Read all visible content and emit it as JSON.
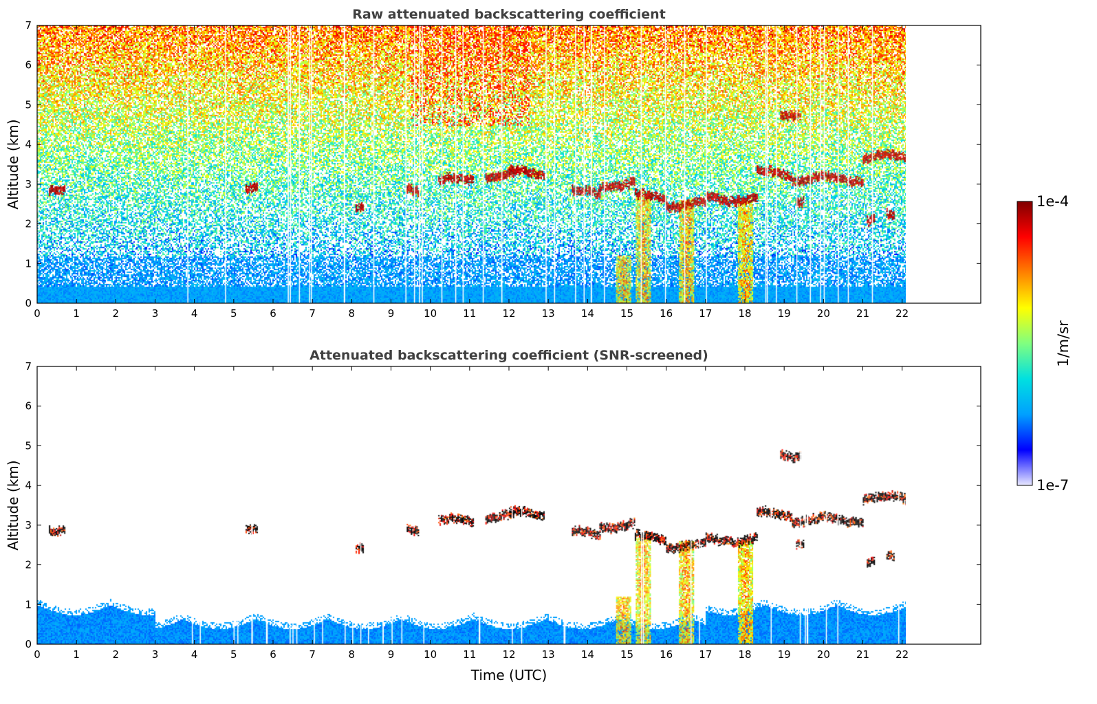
{
  "chart_data": [
    {
      "type": "heatmap",
      "title": "Raw attenuated backscattering coefficient",
      "ylabel": "Altitude (km)",
      "xlabel": "",
      "xlim": [
        0,
        24
      ],
      "ylim": [
        0,
        7
      ],
      "xticks": [
        "0",
        "1",
        "2",
        "3",
        "4",
        "5",
        "6",
        "7",
        "8",
        "9",
        "10",
        "11",
        "12",
        "13",
        "14",
        "15",
        "16",
        "17",
        "18",
        "19",
        "20",
        "21",
        "22"
      ],
      "yticks": [
        "0",
        "1",
        "2",
        "3",
        "4",
        "5",
        "6",
        "7"
      ],
      "data_end_time": 22.1,
      "screened": false,
      "features": {
        "boundary_layer_top_km": 0.45,
        "cloud_layers": [
          {
            "t0": 0.3,
            "t1": 0.7,
            "alt": 2.93
          },
          {
            "t0": 5.3,
            "t1": 5.6,
            "alt": 2.93
          },
          {
            "t0": 8.1,
            "t1": 8.3,
            "alt": 2.5
          },
          {
            "t0": 9.4,
            "t1": 9.7,
            "alt": 2.9
          },
          {
            "t0": 10.2,
            "t1": 11.1,
            "alt": 3.12
          },
          {
            "t0": 11.4,
            "t1": 12.1,
            "alt": 3.25
          },
          {
            "t0": 12.0,
            "t1": 12.9,
            "alt": 3.3
          },
          {
            "t0": 13.6,
            "t1": 14.3,
            "alt": 2.8
          },
          {
            "t0": 14.3,
            "t1": 15.2,
            "alt": 3.0
          },
          {
            "t0": 15.2,
            "t1": 16.0,
            "alt": 2.7
          },
          {
            "t0": 16.0,
            "t1": 17.0,
            "alt": 2.5
          },
          {
            "t0": 17.0,
            "t1": 18.3,
            "alt": 2.65
          },
          {
            "t0": 18.3,
            "t1": 19.2,
            "alt": 3.3
          },
          {
            "t0": 19.2,
            "t1": 21.0,
            "alt": 3.15
          },
          {
            "t0": 21.0,
            "t1": 22.1,
            "alt": 3.7
          },
          {
            "t0": 18.9,
            "t1": 19.4,
            "alt": 4.8
          },
          {
            "t0": 19.3,
            "t1": 19.5,
            "alt": 2.6
          },
          {
            "t0": 21.1,
            "t1": 21.3,
            "alt": 2.1
          },
          {
            "t0": 21.6,
            "t1": 21.8,
            "alt": 2.2
          }
        ],
        "precipitation_shafts": [
          {
            "t": 15.4,
            "top_km": 2.7
          },
          {
            "t": 16.5,
            "top_km": 2.6
          },
          {
            "t": 18.0,
            "top_km": 2.6
          },
          {
            "t": 14.9,
            "top_km": 1.2
          }
        ]
      }
    },
    {
      "type": "heatmap",
      "title": "Attenuated backscattering coefficient (SNR-screened)",
      "ylabel": "Altitude (km)",
      "xlabel": "Time (UTC)",
      "xlim": [
        0,
        24
      ],
      "ylim": [
        0,
        7
      ],
      "xticks": [
        "0",
        "1",
        "2",
        "3",
        "4",
        "5",
        "6",
        "7",
        "8",
        "9",
        "10",
        "11",
        "12",
        "13",
        "14",
        "15",
        "16",
        "17",
        "18",
        "19",
        "20",
        "21",
        "22"
      ],
      "yticks": [
        "0",
        "1",
        "2",
        "3",
        "4",
        "5",
        "6",
        "7"
      ],
      "data_end_time": 22.1,
      "screened": true,
      "features": {
        "boundary_layer_top_km": 1.0
      }
    }
  ],
  "colorbar": {
    "label": "1/m/sr",
    "max_label": "1e-4",
    "min_label": "1e-7",
    "colormap": "jet",
    "range": [
      1e-07,
      0.0001
    ],
    "colors": [
      "#e8e8ff",
      "#0000ff",
      "#00a0ff",
      "#00e0e0",
      "#80ff80",
      "#ffff00",
      "#ff8000",
      "#ff0000",
      "#800000"
    ]
  }
}
